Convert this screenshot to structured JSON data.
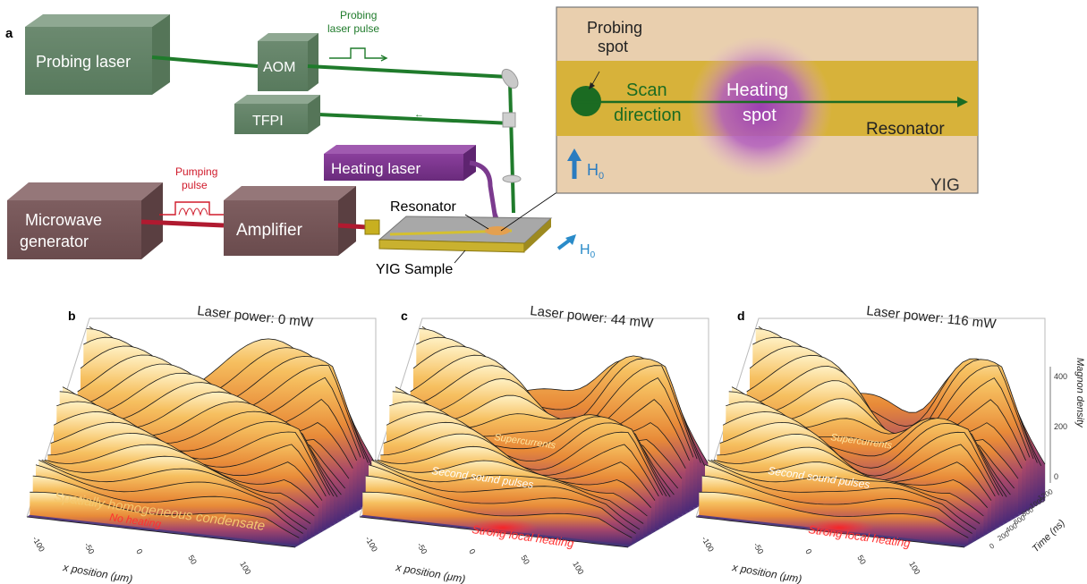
{
  "panel_a": {
    "letter": "a",
    "probing_laser": "Probing laser",
    "aom": "AOM",
    "probing_pulse_line1": "Probing",
    "probing_pulse_line2": "laser pulse",
    "tfpi": "TFPI",
    "heating_laser": "Heating laser",
    "microwave_line1": "Microwave",
    "microwave_line2": "generator",
    "pumping_line1": "Pumping",
    "pumping_line2": "pulse",
    "amplifier": "Amplifier",
    "resonator": "Resonator",
    "yig_sample": "YIG Sample",
    "field": "H",
    "field_sub": "0"
  },
  "inset": {
    "probing_line1": "Probing",
    "probing_line2": "spot",
    "scan_line1": "Scan",
    "scan_line2": "direction",
    "heating_line1": "Heating",
    "heating_line2": "spot",
    "resonator": "Resonator",
    "field": "H",
    "field_sub": "0",
    "yig": "YIG"
  },
  "panels": [
    {
      "letter": "b",
      "title": "Laser power: 0 mW",
      "label1": "Spatially homogeneous condensate",
      "label2": "No heating",
      "xlabel": "x position (μm)",
      "xticks": [
        "-100",
        "-50",
        "0",
        "50",
        "100"
      ]
    },
    {
      "letter": "c",
      "title": "Laser power: 44 mW",
      "label1": "Supercurrents",
      "label2": "Second sound pulses",
      "label3": "Strong local heating",
      "xlabel": "x position (μm)",
      "xticks": [
        "-100",
        "-50",
        "0",
        "50",
        "100"
      ]
    },
    {
      "letter": "d",
      "title": "Laser power: 116 mW",
      "label1": "Supercurrents",
      "label2": "Second sound pulses",
      "label3": "Strong local heating",
      "xlabel": "x position (μm)",
      "xticks": [
        "-100",
        "-50",
        "0",
        "50",
        "100"
      ],
      "zlabel_line1": "Magnon density",
      "zlabel_line2": "(arb. u.)",
      "zticks": [
        "0",
        "200",
        "400"
      ],
      "tlabel": "Time (ns)",
      "tticks": [
        "0",
        "200",
        "400",
        "600",
        "800",
        "1000",
        "1200"
      ]
    }
  ],
  "colors": {
    "box_green": "#6b8a6e",
    "box_brown": "#7b5a5c",
    "laser_purple": "#7b3a8e",
    "beam_green": "#1e7a2a",
    "inset_bg": "#e9cfae",
    "inset_band": "#d7b23a"
  }
}
